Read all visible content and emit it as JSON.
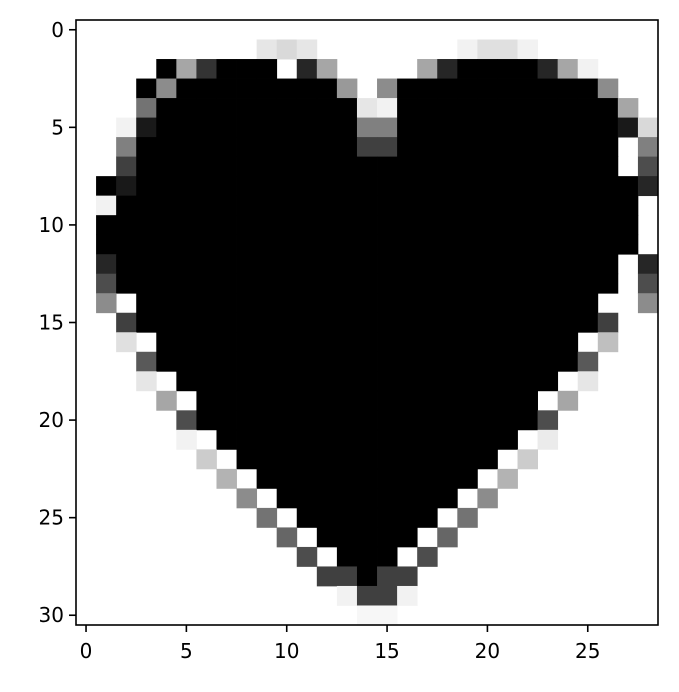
{
  "chart_data": {
    "type": "heatmap",
    "colormap": "gray_r",
    "grid": false,
    "title": "",
    "xlabel": "",
    "ylabel": "",
    "xlim": [
      -0.5,
      28.5
    ],
    "ylim": [
      30.5,
      -0.5
    ],
    "value_range": [
      0,
      1
    ],
    "x_ticks": [
      0,
      5,
      10,
      15,
      20,
      25
    ],
    "x_tick_labels": [
      "0",
      "5",
      "10",
      "15",
      "20",
      "25"
    ],
    "y_ticks": [
      0,
      5,
      10,
      15,
      20,
      25,
      30
    ],
    "y_tick_labels": [
      "0",
      "5",
      "10",
      "15",
      "20",
      "25",
      "30"
    ],
    "n_cols": 29,
    "n_rows": 30,
    "row_spans": [
      [],
      [],
      [
        [
          4,
          9
        ],
        [
          18,
          24
        ]
      ],
      [
        [
          3,
          12
        ],
        [
          16,
          25
        ]
      ],
      [
        [
          3,
          13
        ],
        [
          15,
          26
        ]
      ],
      [
        [
          2,
          26
        ]
      ],
      [
        [
          2,
          26
        ]
      ],
      [
        [
          2,
          26
        ]
      ],
      [
        [
          1,
          27
        ]
      ],
      [
        [
          1,
          27
        ]
      ],
      [
        [
          1,
          27
        ]
      ],
      [
        [
          1,
          27
        ]
      ],
      [
        [
          2,
          26
        ]
      ],
      [
        [
          2,
          26
        ]
      ],
      [
        [
          3,
          25
        ]
      ],
      [
        [
          3,
          25
        ]
      ],
      [
        [
          4,
          24
        ]
      ],
      [
        [
          4,
          24
        ]
      ],
      [
        [
          5,
          23
        ]
      ],
      [
        [
          6,
          22
        ]
      ],
      [
        [
          6,
          22
        ]
      ],
      [
        [
          7,
          21
        ]
      ],
      [
        [
          8,
          20
        ]
      ],
      [
        [
          9,
          19
        ]
      ],
      [
        [
          10,
          18
        ]
      ],
      [
        [
          11,
          17
        ]
      ],
      [
        [
          12,
          16
        ]
      ],
      [
        [
          13,
          15
        ]
      ],
      [
        [
          14,
          14
        ]
      ],
      []
    ],
    "edges": [
      [
        1,
        9,
        0.1
      ],
      [
        1,
        10,
        0.15
      ],
      [
        1,
        11,
        0.1
      ],
      [
        1,
        19,
        0.05
      ],
      [
        1,
        20,
        0.12
      ],
      [
        1,
        21,
        0.12
      ],
      [
        1,
        22,
        0.05
      ],
      [
        2,
        5,
        0.35
      ],
      [
        2,
        6,
        0.8
      ],
      [
        2,
        11,
        0.85
      ],
      [
        2,
        12,
        0.35
      ],
      [
        2,
        17,
        0.35
      ],
      [
        2,
        18,
        0.85
      ],
      [
        2,
        23,
        0.85
      ],
      [
        2,
        24,
        0.35
      ],
      [
        2,
        25,
        0.05
      ],
      [
        3,
        4,
        0.45
      ],
      [
        3,
        13,
        0.4
      ],
      [
        3,
        15,
        0.45
      ],
      [
        3,
        26,
        0.45
      ],
      [
        4,
        3,
        0.55
      ],
      [
        4,
        14,
        0.1
      ],
      [
        4,
        15,
        0.05
      ],
      [
        4,
        27,
        0.35
      ],
      [
        5,
        2,
        0.05
      ],
      [
        5,
        3,
        0.9
      ],
      [
        5,
        14,
        0.5
      ],
      [
        5,
        15,
        0.5
      ],
      [
        5,
        27,
        0.9
      ],
      [
        5,
        28,
        0.15
      ],
      [
        6,
        2,
        0.5
      ],
      [
        6,
        14,
        0.75
      ],
      [
        6,
        15,
        0.75
      ],
      [
        6,
        28,
        0.5
      ],
      [
        7,
        2,
        0.75
      ],
      [
        7,
        28,
        0.7
      ],
      [
        8,
        2,
        0.9
      ],
      [
        8,
        28,
        0.85
      ],
      [
        9,
        1,
        0.05
      ],
      [
        9,
        29,
        0.05
      ],
      [
        12,
        1,
        0.85
      ],
      [
        12,
        28,
        0.85
      ],
      [
        13,
        1,
        0.7
      ],
      [
        13,
        28,
        0.7
      ],
      [
        14,
        1,
        0.45
      ],
      [
        14,
        28,
        0.45
      ],
      [
        15,
        2,
        0.75
      ],
      [
        15,
        26,
        0.75
      ],
      [
        16,
        2,
        0.12
      ],
      [
        16,
        26,
        0.25
      ],
      [
        17,
        3,
        0.65
      ],
      [
        17,
        25,
        0.65
      ],
      [
        18,
        3,
        0.1
      ],
      [
        18,
        25,
        0.1
      ],
      [
        19,
        4,
        0.35
      ],
      [
        19,
        24,
        0.35
      ],
      [
        20,
        5,
        0.7
      ],
      [
        20,
        23,
        0.7
      ],
      [
        21,
        5,
        0.05
      ],
      [
        21,
        23,
        0.08
      ],
      [
        22,
        6,
        0.2
      ],
      [
        22,
        22,
        0.2
      ],
      [
        23,
        7,
        0.3
      ],
      [
        23,
        21,
        0.3
      ],
      [
        24,
        8,
        0.45
      ],
      [
        24,
        20,
        0.45
      ],
      [
        25,
        9,
        0.55
      ],
      [
        25,
        19,
        0.55
      ],
      [
        26,
        10,
        0.6
      ],
      [
        26,
        18,
        0.6
      ],
      [
        27,
        11,
        0.7
      ],
      [
        27,
        17,
        0.7
      ],
      [
        28,
        12,
        0.75
      ],
      [
        28,
        13,
        0.75
      ],
      [
        28,
        15,
        0.75
      ],
      [
        28,
        16,
        0.75
      ],
      [
        29,
        13,
        0.05
      ],
      [
        29,
        14,
        0.75
      ],
      [
        29,
        15,
        0.75
      ],
      [
        29,
        16,
        0.05
      ],
      [
        30,
        14,
        0.03
      ],
      [
        30,
        15,
        0.03
      ]
    ]
  }
}
